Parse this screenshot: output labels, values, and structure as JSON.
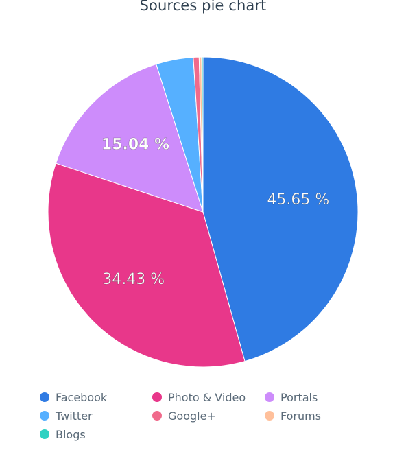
{
  "chart_data": {
    "type": "pie",
    "title": "Sources pie chart",
    "slices": [
      {
        "label": "Facebook",
        "value": 45.65,
        "display": "45.65 %",
        "color": "#2f7be3"
      },
      {
        "label": "Photo & Video",
        "value": 34.43,
        "display": "34.43 %",
        "color": "#e8378a"
      },
      {
        "label": "Portals",
        "value": 15.04,
        "display": "15.04 %",
        "color": "#cd8cfb"
      },
      {
        "label": "Twitter",
        "value": 3.88,
        "display": "",
        "color": "#56b0ff"
      },
      {
        "label": "Google+",
        "value": 0.6,
        "display": "",
        "color": "#f06a8b"
      },
      {
        "label": "Forums",
        "value": 0.25,
        "display": "",
        "color": "#ffc09b"
      },
      {
        "label": "Blogs",
        "value": 0.15,
        "display": "",
        "color": "#2fd1c2"
      }
    ],
    "legend_position": "bottom"
  }
}
